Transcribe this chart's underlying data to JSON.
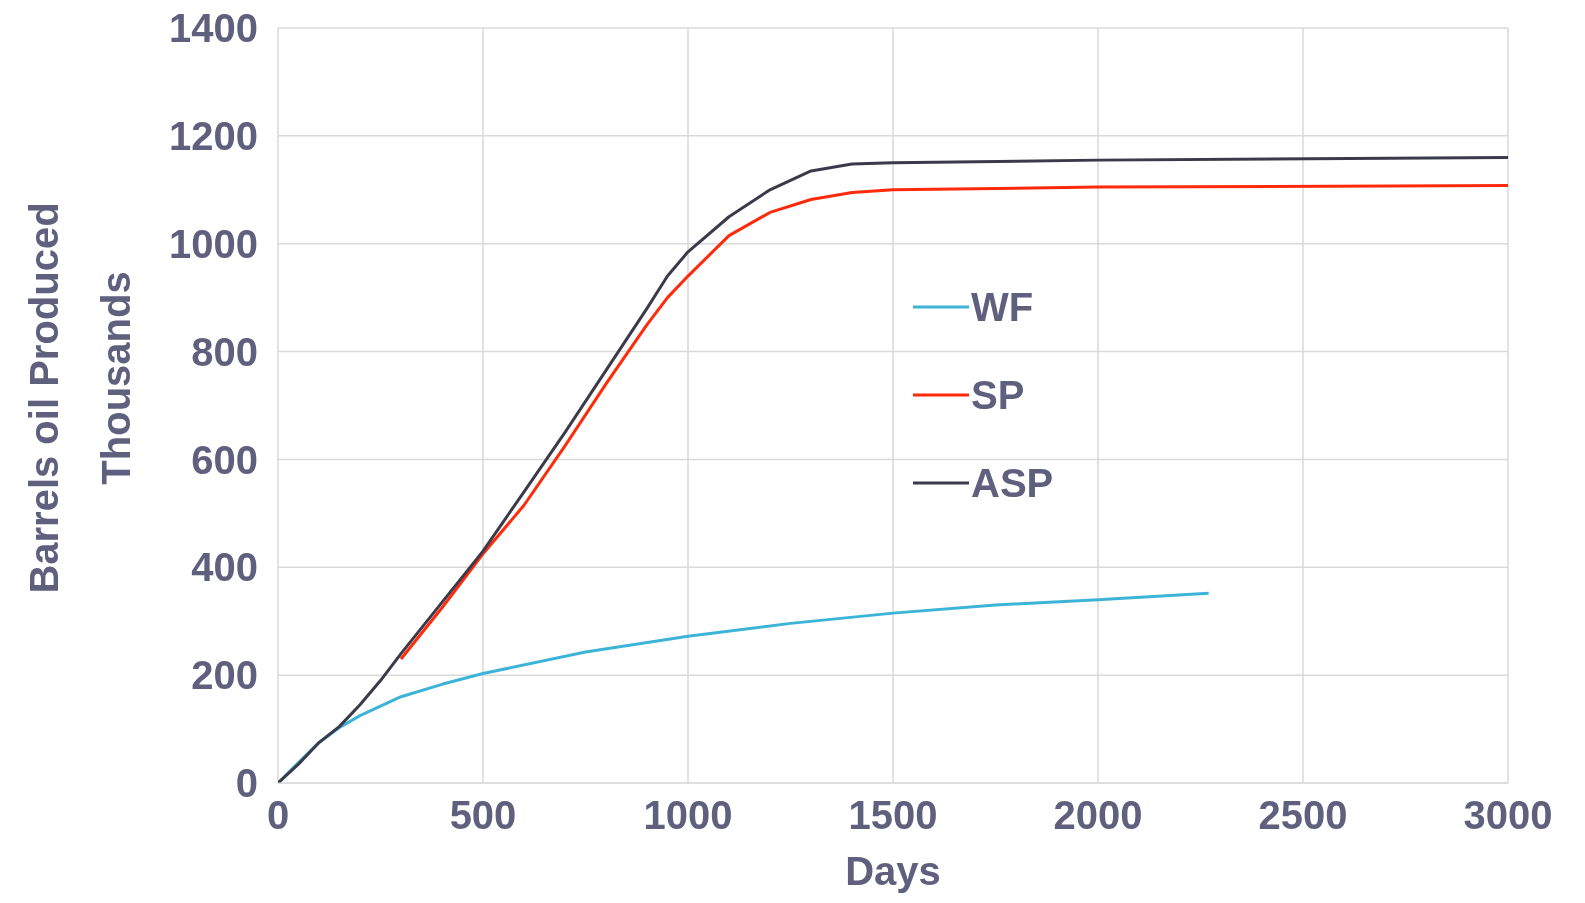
{
  "chart_data": {
    "type": "line",
    "xlabel": "Days",
    "ylabel": "Barrels oil Produced",
    "annotations": [
      "Thousands"
    ],
    "xlim": [
      0,
      3000
    ],
    "xticks": [
      0,
      500,
      1000,
      1500,
      2000,
      2500,
      3000
    ],
    "ylim": [
      0,
      1400
    ],
    "yticks": [
      0,
      200,
      400,
      600,
      800,
      1000,
      1200,
      1400
    ],
    "grid": true,
    "legend": "center",
    "marker": "none",
    "line_style": "solid",
    "series": [
      {
        "name": "WF",
        "color": "#3cb4d8",
        "x": [
          0,
          50,
          100,
          150,
          200,
          300,
          400,
          500,
          750,
          1000,
          1250,
          1500,
          1750,
          2000,
          2270
        ],
        "values": [
          0,
          38,
          75,
          103,
          125,
          160,
          183,
          203,
          243,
          272,
          296,
          315,
          330,
          340,
          352
        ]
      },
      {
        "name": "SP",
        "color": "#ff2a0a",
        "x": [
          300,
          400,
          500,
          600,
          700,
          800,
          900,
          950,
          1000,
          1100,
          1200,
          1300,
          1400,
          1500,
          2000,
          3000
        ],
        "values": [
          230,
          325,
          425,
          515,
          625,
          740,
          850,
          900,
          940,
          1015,
          1058,
          1082,
          1095,
          1100,
          1105,
          1108
        ]
      },
      {
        "name": "ASP",
        "color": "#3a3a4a",
        "x": [
          0,
          50,
          100,
          150,
          200,
          250,
          300,
          400,
          500,
          600,
          700,
          800,
          900,
          950,
          1000,
          1100,
          1200,
          1300,
          1400,
          1500,
          2000,
          3000
        ],
        "values": [
          0,
          35,
          75,
          105,
          145,
          190,
          240,
          335,
          430,
          540,
          650,
          765,
          880,
          940,
          985,
          1050,
          1100,
          1135,
          1148,
          1150,
          1155,
          1160
        ]
      }
    ]
  }
}
